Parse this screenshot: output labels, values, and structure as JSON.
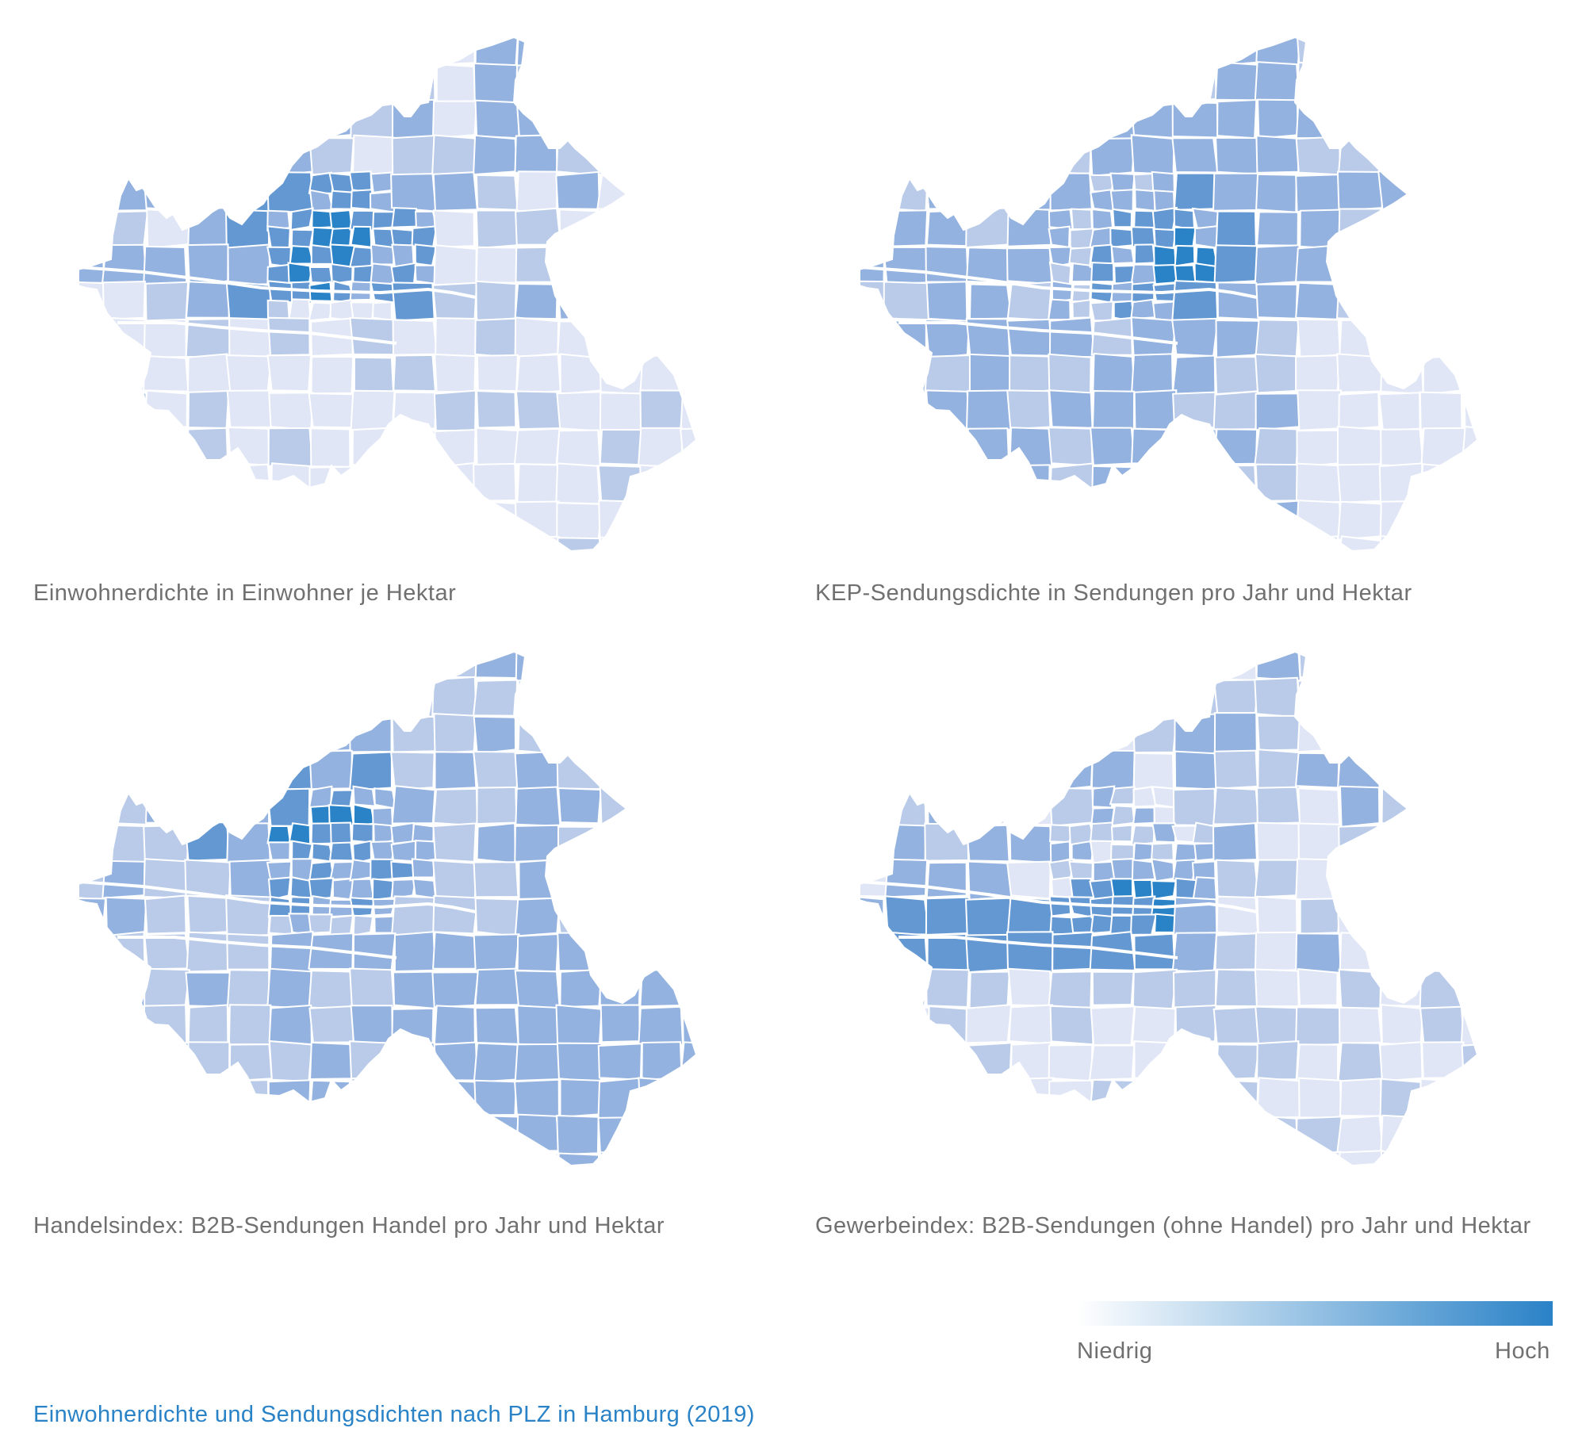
{
  "figure_title": "Einwohnerdichte und Sendungsdichten nach PLZ in Hamburg (2019)",
  "maps": [
    {
      "id": "einwohner",
      "caption": "Einwohnerdichte in Einwohner je Hektar",
      "pattern": 0
    },
    {
      "id": "kep",
      "caption": "KEP-Sendungsdichte in Sendungen pro Jahr und Hektar",
      "pattern": 1
    },
    {
      "id": "handel",
      "caption": "Handelsindex: B2B-Sendungen Handel pro Jahr und Hektar",
      "pattern": 2
    },
    {
      "id": "gewerbe",
      "caption": "Gewerbeindex: B2B-Sendungen (ohne Handel) pro Jahr und Hektar",
      "pattern": 3
    }
  ],
  "legend": {
    "low_label": "Niedrig",
    "high_label": "Hoch",
    "color_low": "#ffffff",
    "color_high": "#2a82c7"
  },
  "palette": [
    "#e0e6f5",
    "#b9cbe9",
    "#93b2df",
    "#6498d2",
    "#2a82c7"
  ],
  "stroke_color": "#ffffff"
}
